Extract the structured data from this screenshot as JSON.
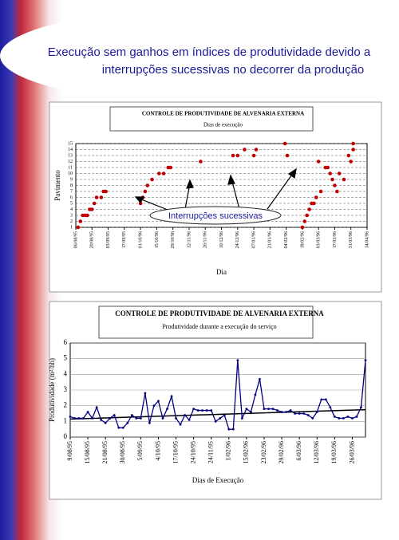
{
  "slide": {
    "title_line1": "Execução sem ganhos em índices de produtividade devido a",
    "title_line2": "interrupções sucessivas no decorrer da produção"
  },
  "chart_data": [
    {
      "type": "scatter",
      "title": "CONTROLE DE PRODUTIVIDADE DE ALVENARIA EXTERNA",
      "subtitle": "Dias de execução",
      "x_label": "Dia",
      "y_label": "Pavimento",
      "annotation": "Interrupções sucessivas",
      "xlim": [
        0,
        252
      ],
      "ylim": [
        1,
        15
      ],
      "grid": true,
      "xticks": [
        {
          "value": 0,
          "label": "06/08/95"
        },
        {
          "value": 14,
          "label": "20/08/95"
        },
        {
          "value": 28,
          "label": "03/09/95"
        },
        {
          "value": 42,
          "label": "17/09/95"
        },
        {
          "value": 56,
          "label": "01/10/96"
        },
        {
          "value": 70,
          "label": "15/10/96"
        },
        {
          "value": 84,
          "label": "29/10/96"
        },
        {
          "value": 98,
          "label": "12/11/96"
        },
        {
          "value": 112,
          "label": "26/11/96"
        },
        {
          "value": 126,
          "label": "10/12/96"
        },
        {
          "value": 140,
          "label": "24/12/96"
        },
        {
          "value": 154,
          "label": "07/01/96"
        },
        {
          "value": 168,
          "label": "21/01/96"
        },
        {
          "value": 182,
          "label": "04/02/96"
        },
        {
          "value": 196,
          "label": "18/02/96"
        },
        {
          "value": 210,
          "label": "03/03/96"
        },
        {
          "value": 224,
          "label": "17/03/96"
        },
        {
          "value": 238,
          "label": "31/03/96"
        },
        {
          "value": 252,
          "label": "14/04/96"
        }
      ],
      "yticks": [
        1,
        2,
        3,
        4,
        5,
        6,
        7,
        8,
        9,
        10,
        11,
        12,
        13,
        14,
        15
      ],
      "x": [
        2,
        4,
        6,
        8,
        10,
        12,
        14,
        16,
        18,
        22,
        24,
        26,
        56,
        58,
        60,
        62,
        66,
        72,
        76,
        80,
        82,
        108,
        136,
        140,
        146,
        154,
        156,
        181,
        183,
        196,
        198,
        200,
        202,
        204,
        206,
        208,
        210,
        212,
        216,
        218,
        220,
        222,
        224,
        226,
        228,
        232,
        236,
        238,
        240,
        240
      ],
      "series": [
        {
          "color": "#c00000",
          "values": [
            1,
            2,
            3,
            3,
            3,
            4,
            4,
            5,
            6,
            6,
            7,
            7,
            5,
            6,
            7,
            8,
            9,
            10,
            10,
            11,
            11,
            12,
            13,
            13,
            14,
            13,
            14,
            15,
            13,
            1,
            2,
            3,
            4,
            5,
            5,
            6,
            12,
            7,
            11,
            11,
            10,
            9,
            8,
            7,
            10,
            9,
            13,
            12,
            14,
            15
          ]
        }
      ]
    },
    {
      "type": "line",
      "title": "CONTROLE DE PRODUTIVIDADE DE ALVENARIA EXTERNA",
      "subtitle": "Produtividade durante a execução do serviço",
      "x_label": "Dias de Execução",
      "y_label": "Produtividade (m²/hh)",
      "ylim": [
        0,
        6
      ],
      "yticks": [
        0,
        1,
        2,
        3,
        4,
        5,
        6
      ],
      "grid": true,
      "categories": [
        "9/08/95",
        null,
        null,
        null,
        "15/08/95",
        null,
        null,
        null,
        "21/08/95",
        null,
        null,
        null,
        "30/08/95",
        null,
        null,
        null,
        "5/09/95",
        null,
        null,
        null,
        "4/10/95",
        null,
        null,
        null,
        "17/10/95",
        null,
        null,
        null,
        "24/10/95",
        null,
        null,
        null,
        "24/11/95",
        null,
        null,
        null,
        "1/02/96",
        null,
        null,
        null,
        "15/02/96",
        null,
        null,
        null,
        "23/02/96",
        null,
        null,
        null,
        "29/02/96",
        null,
        null,
        null,
        "6/03/96",
        null,
        null,
        null,
        "12/03/96",
        null,
        null,
        null,
        "19/03/96",
        null,
        null,
        null,
        "26/03/96",
        null,
        null,
        null
      ],
      "series": [
        {
          "color": "#000080",
          "values": [
            1.3,
            1.2,
            1.2,
            1.2,
            1.6,
            1.2,
            1.9,
            1.1,
            0.9,
            1.2,
            1.4,
            0.6,
            0.6,
            0.9,
            1.4,
            1.2,
            1.2,
            2.8,
            0.9,
            2.0,
            2.3,
            1.2,
            1.8,
            2.6,
            1.2,
            0.8,
            1.4,
            1.1,
            1.8,
            1.7,
            1.7,
            1.7,
            1.7,
            1.0,
            1.2,
            1.4,
            0.5,
            0.5,
            4.9,
            1.2,
            1.8,
            1.6,
            2.7,
            3.7,
            1.8,
            1.8,
            1.8,
            1.7,
            1.6,
            1.6,
            1.7,
            1.5,
            1.5,
            1.5,
            1.4,
            1.2,
            1.6,
            2.4,
            2.4,
            1.9,
            1.3,
            1.2,
            1.2,
            1.3,
            1.2,
            1.3,
            1.9,
            4.9
          ]
        }
      ],
      "trend": {
        "color": "#000000",
        "values": [
          1.15,
          1.75
        ]
      }
    }
  ]
}
